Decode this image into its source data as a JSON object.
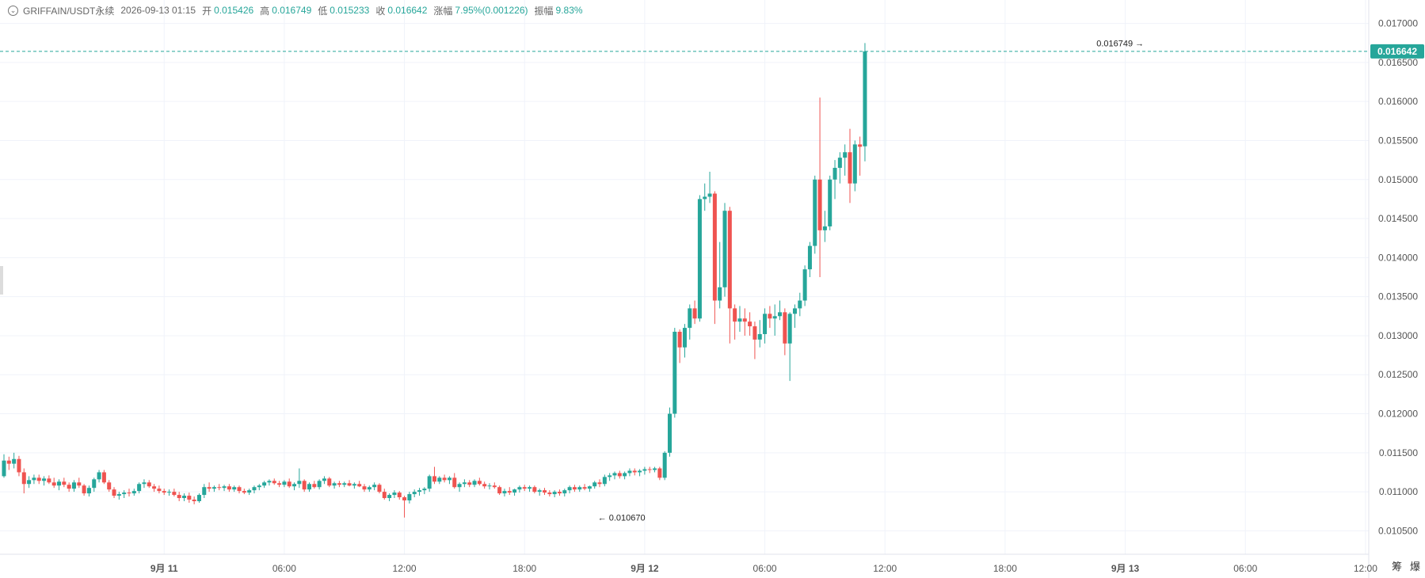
{
  "header": {
    "symbol": "GRIFFAIN/USDT永续",
    "datetime": "2026-09-13 01:15",
    "open_label": "开",
    "open": "0.015426",
    "high_label": "高",
    "high": "0.016749",
    "low_label": "低",
    "low": "0.015233",
    "close_label": "收",
    "close": "0.016642",
    "change_label": "涨幅",
    "change": "7.95%(0.001226)",
    "amplitude_label": "振幅",
    "amplitude": "9.83%"
  },
  "bottom_buttons": [
    "筹",
    "爆"
  ],
  "colors": {
    "up": "#26a69a",
    "down": "#ef5350",
    "grid": "#f0f3fa",
    "axis_text": "#555555"
  },
  "chart_data": {
    "type": "candlestick",
    "interval_minutes": 15,
    "start_time": "2026-09-10 16:00",
    "ylim": [
      0.0102,
      0.0173
    ],
    "y_ticks": [
      "0.017000",
      "0.016500",
      "0.016000",
      "0.015500",
      "0.015000",
      "0.014500",
      "0.014000",
      "0.013500",
      "0.013000",
      "0.012500",
      "0.012000",
      "0.011500",
      "0.011000",
      "0.010500"
    ],
    "x_ticks": [
      {
        "time": "2026-09-11 00:00",
        "label": "9月 11",
        "bold": true
      },
      {
        "time": "2026-09-11 06:00",
        "label": "06:00",
        "bold": false
      },
      {
        "time": "2026-09-11 12:00",
        "label": "12:00",
        "bold": false
      },
      {
        "time": "2026-09-11 18:00",
        "label": "18:00",
        "bold": false
      },
      {
        "time": "2026-09-12 00:00",
        "label": "9月 12",
        "bold": true
      },
      {
        "time": "2026-09-12 06:00",
        "label": "06:00",
        "bold": false
      },
      {
        "time": "2026-09-12 12:00",
        "label": "12:00",
        "bold": false
      },
      {
        "time": "2026-09-12 18:00",
        "label": "18:00",
        "bold": false
      },
      {
        "time": "2026-09-13 00:00",
        "label": "9月 13",
        "bold": true
      },
      {
        "time": "2026-09-13 06:00",
        "label": "06:00",
        "bold": false
      },
      {
        "time": "2026-09-13 12:00",
        "label": "12:00",
        "bold": false
      }
    ],
    "last_price": 0.016642,
    "last_price_label": "0.016642",
    "max_marker": {
      "time": "2026-09-13 01:15",
      "price": 0.016749,
      "label": "0.016749"
    },
    "min_marker": {
      "time": "2026-09-11 21:30",
      "price": 0.01067,
      "label": "0.010670"
    },
    "ohlc": [
      [
        0.0112,
        0.01148,
        0.01118,
        0.0114
      ],
      [
        0.0114,
        0.01145,
        0.01128,
        0.01136
      ],
      [
        0.01136,
        0.0115,
        0.0113,
        0.01142
      ],
      [
        0.01142,
        0.01146,
        0.0112,
        0.01125
      ],
      [
        0.01125,
        0.0113,
        0.01098,
        0.0111
      ],
      [
        0.0111,
        0.0112,
        0.01105,
        0.01115
      ],
      [
        0.01115,
        0.01122,
        0.0111,
        0.01118
      ],
      [
        0.01118,
        0.01122,
        0.0111,
        0.01114
      ],
      [
        0.01114,
        0.0112,
        0.01108,
        0.01117
      ],
      [
        0.01117,
        0.01121,
        0.0111,
        0.01112
      ],
      [
        0.01112,
        0.01118,
        0.01105,
        0.01108
      ],
      [
        0.01108,
        0.01116,
        0.01102,
        0.01113
      ],
      [
        0.01113,
        0.01118,
        0.01106,
        0.01109
      ],
      [
        0.01109,
        0.01112,
        0.011,
        0.01104
      ],
      [
        0.01104,
        0.01115,
        0.011,
        0.01112
      ],
      [
        0.01112,
        0.01118,
        0.01105,
        0.01108
      ],
      [
        0.01108,
        0.0111,
        0.01095,
        0.01098
      ],
      [
        0.01098,
        0.01108,
        0.01094,
        0.01105
      ],
      [
        0.01105,
        0.01118,
        0.011,
        0.01116
      ],
      [
        0.01116,
        0.01128,
        0.01112,
        0.01125
      ],
      [
        0.01125,
        0.01128,
        0.0111,
        0.01112
      ],
      [
        0.01112,
        0.01115,
        0.011,
        0.01103
      ],
      [
        0.01103,
        0.01106,
        0.01092,
        0.01095
      ],
      [
        0.01095,
        0.011,
        0.0109,
        0.01097
      ],
      [
        0.01097,
        0.01102,
        0.01092,
        0.01099
      ],
      [
        0.01099,
        0.01104,
        0.01094,
        0.01098
      ],
      [
        0.01098,
        0.01104,
        0.01095,
        0.01101
      ],
      [
        0.01101,
        0.01112,
        0.01098,
        0.0111
      ],
      [
        0.0111,
        0.01116,
        0.01105,
        0.01112
      ],
      [
        0.01112,
        0.01115,
        0.01105,
        0.01107
      ],
      [
        0.01107,
        0.0111,
        0.011,
        0.01104
      ],
      [
        0.01104,
        0.01108,
        0.01098,
        0.01101
      ],
      [
        0.01101,
        0.01104,
        0.01096,
        0.01099
      ],
      [
        0.01099,
        0.01103,
        0.01095,
        0.011
      ],
      [
        0.011,
        0.01104,
        0.01094,
        0.01096
      ],
      [
        0.01096,
        0.011,
        0.01088,
        0.01092
      ],
      [
        0.01092,
        0.01098,
        0.01088,
        0.01095
      ],
      [
        0.01095,
        0.01099,
        0.01086,
        0.0109
      ],
      [
        0.0109,
        0.01094,
        0.01084,
        0.01088
      ],
      [
        0.01088,
        0.01098,
        0.01086,
        0.01096
      ],
      [
        0.01096,
        0.0111,
        0.01092,
        0.01106
      ],
      [
        0.01106,
        0.01112,
        0.011,
        0.01104
      ],
      [
        0.01104,
        0.01108,
        0.011,
        0.01106
      ],
      [
        0.01106,
        0.0111,
        0.01102,
        0.01105
      ],
      [
        0.01105,
        0.01109,
        0.01101,
        0.01107
      ],
      [
        0.01107,
        0.0111,
        0.011,
        0.01103
      ],
      [
        0.01103,
        0.01108,
        0.011,
        0.01106
      ],
      [
        0.01106,
        0.01108,
        0.01098,
        0.01101
      ],
      [
        0.01101,
        0.01104,
        0.01097,
        0.01099
      ],
      [
        0.01099,
        0.01104,
        0.01096,
        0.01102
      ],
      [
        0.01102,
        0.01108,
        0.01098,
        0.01106
      ],
      [
        0.01106,
        0.0111,
        0.01102,
        0.01108
      ],
      [
        0.01108,
        0.01114,
        0.01105,
        0.01112
      ],
      [
        0.01112,
        0.01116,
        0.01108,
        0.01114
      ],
      [
        0.01114,
        0.01117,
        0.01109,
        0.01111
      ],
      [
        0.01111,
        0.01114,
        0.01106,
        0.01109
      ],
      [
        0.01109,
        0.01115,
        0.01106,
        0.01113
      ],
      [
        0.01113,
        0.01117,
        0.01105,
        0.01107
      ],
      [
        0.01107,
        0.01112,
        0.01102,
        0.0111
      ],
      [
        0.0111,
        0.0113,
        0.01105,
        0.01114
      ],
      [
        0.01114,
        0.01116,
        0.011,
        0.01103
      ],
      [
        0.01103,
        0.01112,
        0.011,
        0.0111
      ],
      [
        0.0111,
        0.01114,
        0.01104,
        0.01106
      ],
      [
        0.01106,
        0.01116,
        0.01103,
        0.01114
      ],
      [
        0.01114,
        0.0112,
        0.0111,
        0.01117
      ],
      [
        0.01117,
        0.01119,
        0.01106,
        0.01108
      ],
      [
        0.01108,
        0.01113,
        0.01104,
        0.01111
      ],
      [
        0.01111,
        0.01114,
        0.01106,
        0.01109
      ],
      [
        0.01109,
        0.01113,
        0.01106,
        0.01111
      ],
      [
        0.01111,
        0.01115,
        0.01107,
        0.01108
      ],
      [
        0.01108,
        0.01112,
        0.01104,
        0.0111
      ],
      [
        0.0111,
        0.01114,
        0.01106,
        0.01107
      ],
      [
        0.01107,
        0.0111,
        0.011,
        0.01103
      ],
      [
        0.01103,
        0.01108,
        0.011,
        0.01106
      ],
      [
        0.01106,
        0.01112,
        0.01102,
        0.01109
      ],
      [
        0.01109,
        0.01111,
        0.01098,
        0.011
      ],
      [
        0.011,
        0.01104,
        0.0109,
        0.01092
      ],
      [
        0.01092,
        0.01098,
        0.01088,
        0.01096
      ],
      [
        0.01096,
        0.01102,
        0.01092,
        0.01099
      ],
      [
        0.01099,
        0.01101,
        0.0109,
        0.01093
      ],
      [
        0.01093,
        0.01095,
        0.01067,
        0.01089
      ],
      [
        0.01089,
        0.011,
        0.01085,
        0.01097
      ],
      [
        0.01097,
        0.01103,
        0.01093,
        0.011
      ],
      [
        0.011,
        0.01105,
        0.01095,
        0.01102
      ],
      [
        0.01102,
        0.01106,
        0.01097,
        0.01104
      ],
      [
        0.01104,
        0.01122,
        0.011,
        0.0112
      ],
      [
        0.0112,
        0.01132,
        0.0111,
        0.01113
      ],
      [
        0.01113,
        0.0112,
        0.0111,
        0.01118
      ],
      [
        0.01118,
        0.01122,
        0.01112,
        0.01115
      ],
      [
        0.01115,
        0.0112,
        0.0111,
        0.01118
      ],
      [
        0.01118,
        0.01124,
        0.01104,
        0.01106
      ],
      [
        0.01106,
        0.01112,
        0.011,
        0.0111
      ],
      [
        0.0111,
        0.01116,
        0.01106,
        0.01112
      ],
      [
        0.01112,
        0.01115,
        0.01106,
        0.01109
      ],
      [
        0.01109,
        0.01116,
        0.01106,
        0.01114
      ],
      [
        0.01114,
        0.01118,
        0.01108,
        0.0111
      ],
      [
        0.0111,
        0.01113,
        0.01104,
        0.01107
      ],
      [
        0.01107,
        0.01111,
        0.01103,
        0.01108
      ],
      [
        0.01108,
        0.01112,
        0.01104,
        0.01106
      ],
      [
        0.01106,
        0.01108,
        0.01096,
        0.01098
      ],
      [
        0.01098,
        0.01104,
        0.01094,
        0.01101
      ],
      [
        0.01101,
        0.01106,
        0.01096,
        0.01099
      ],
      [
        0.01099,
        0.01104,
        0.01095,
        0.01103
      ],
      [
        0.01103,
        0.01108,
        0.01099,
        0.01106
      ],
      [
        0.01106,
        0.01109,
        0.01101,
        0.01104
      ],
      [
        0.01104,
        0.01108,
        0.011,
        0.01106
      ],
      [
        0.01106,
        0.01108,
        0.01098,
        0.011
      ],
      [
        0.011,
        0.01104,
        0.01095,
        0.01102
      ],
      [
        0.01102,
        0.01105,
        0.01096,
        0.01099
      ],
      [
        0.01099,
        0.01102,
        0.01094,
        0.01097
      ],
      [
        0.01097,
        0.01102,
        0.01093,
        0.011
      ],
      [
        0.011,
        0.01103,
        0.01095,
        0.01098
      ],
      [
        0.01098,
        0.01104,
        0.01094,
        0.01102
      ],
      [
        0.01102,
        0.01108,
        0.01098,
        0.01106
      ],
      [
        0.01106,
        0.01109,
        0.011,
        0.01103
      ],
      [
        0.01103,
        0.01108,
        0.011,
        0.01106
      ],
      [
        0.01106,
        0.0111,
        0.01102,
        0.01104
      ],
      [
        0.01104,
        0.01108,
        0.011,
        0.01107
      ],
      [
        0.01107,
        0.01114,
        0.01104,
        0.01112
      ],
      [
        0.01112,
        0.01116,
        0.01106,
        0.0111
      ],
      [
        0.0111,
        0.01122,
        0.01107,
        0.01119
      ],
      [
        0.01119,
        0.01124,
        0.01114,
        0.01121
      ],
      [
        0.01121,
        0.01126,
        0.01116,
        0.01124
      ],
      [
        0.01124,
        0.01127,
        0.01117,
        0.0112
      ],
      [
        0.0112,
        0.01126,
        0.01116,
        0.01124
      ],
      [
        0.01124,
        0.0113,
        0.0112,
        0.01127
      ],
      [
        0.01127,
        0.0113,
        0.01121,
        0.01125
      ],
      [
        0.01125,
        0.01129,
        0.0112,
        0.01127
      ],
      [
        0.01127,
        0.01132,
        0.01122,
        0.01129
      ],
      [
        0.01129,
        0.01132,
        0.01124,
        0.01128
      ],
      [
        0.01128,
        0.01132,
        0.01125,
        0.0113
      ],
      [
        0.0113,
        0.01132,
        0.01115,
        0.01118
      ],
      [
        0.01118,
        0.01152,
        0.01115,
        0.0115
      ],
      [
        0.0115,
        0.01208,
        0.01145,
        0.012
      ],
      [
        0.012,
        0.0131,
        0.01195,
        0.01305
      ],
      [
        0.01305,
        0.01308,
        0.01265,
        0.01285
      ],
      [
        0.01285,
        0.01315,
        0.01272,
        0.0131
      ],
      [
        0.0131,
        0.0134,
        0.01295,
        0.01335
      ],
      [
        0.01335,
        0.01345,
        0.01315,
        0.01322
      ],
      [
        0.01322,
        0.0148,
        0.01318,
        0.01475
      ],
      [
        0.01475,
        0.01495,
        0.0146,
        0.01478
      ],
      [
        0.01478,
        0.0151,
        0.0147,
        0.01482
      ],
      [
        0.01482,
        0.01485,
        0.01315,
        0.01345
      ],
      [
        0.01345,
        0.0142,
        0.01335,
        0.01362
      ],
      [
        0.01362,
        0.0147,
        0.0135,
        0.0146
      ],
      [
        0.0146,
        0.01465,
        0.0129,
        0.01335
      ],
      [
        0.01335,
        0.0134,
        0.01295,
        0.01318
      ],
      [
        0.01318,
        0.01338,
        0.01305,
        0.01322
      ],
      [
        0.01322,
        0.01335,
        0.013,
        0.01318
      ],
      [
        0.01318,
        0.0133,
        0.013,
        0.01312
      ],
      [
        0.01312,
        0.01318,
        0.0127,
        0.01295
      ],
      [
        0.01295,
        0.0132,
        0.01285,
        0.01302
      ],
      [
        0.01302,
        0.01335,
        0.0129,
        0.01328
      ],
      [
        0.01328,
        0.01338,
        0.0131,
        0.01322
      ],
      [
        0.01322,
        0.0134,
        0.013,
        0.01325
      ],
      [
        0.01325,
        0.01345,
        0.0132,
        0.0133
      ],
      [
        0.0133,
        0.01335,
        0.01275,
        0.0129
      ],
      [
        0.0129,
        0.0133,
        0.01242,
        0.01328
      ],
      [
        0.01328,
        0.0134,
        0.0131,
        0.01335
      ],
      [
        0.01335,
        0.01355,
        0.01325,
        0.01345
      ],
      [
        0.01345,
        0.0139,
        0.01338,
        0.01385
      ],
      [
        0.01385,
        0.0142,
        0.01375,
        0.01415
      ],
      [
        0.01415,
        0.01505,
        0.01405,
        0.015
      ],
      [
        0.015,
        0.01605,
        0.01375,
        0.01435
      ],
      [
        0.01435,
        0.0146,
        0.0142,
        0.0144
      ],
      [
        0.0144,
        0.01505,
        0.01435,
        0.015
      ],
      [
        0.015,
        0.01525,
        0.01475,
        0.01515
      ],
      [
        0.01515,
        0.01535,
        0.01495,
        0.01528
      ],
      [
        0.01528,
        0.01545,
        0.01505,
        0.01535
      ],
      [
        0.01535,
        0.01565,
        0.0147,
        0.01495
      ],
      [
        0.01495,
        0.0155,
        0.01485,
        0.01545
      ],
      [
        0.01545,
        0.01555,
        0.01505,
        0.01542
      ],
      [
        0.015426,
        0.016749,
        0.015233,
        0.016642
      ]
    ]
  }
}
